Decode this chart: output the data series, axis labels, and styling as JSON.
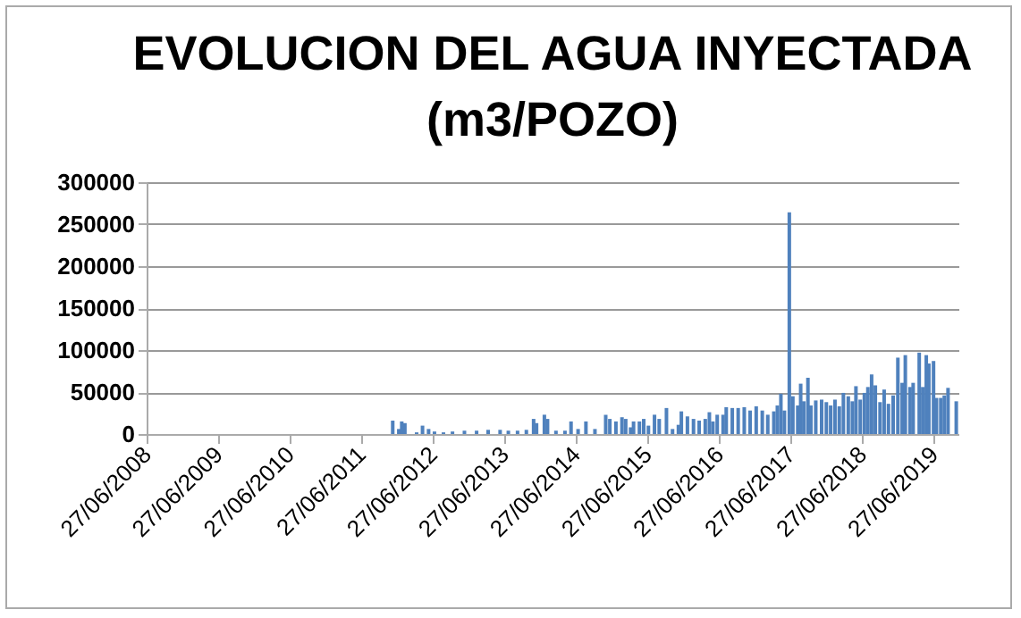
{
  "chart_data": {
    "type": "bar",
    "title": "EVOLUCION DEL AGUA INYECTADA\n(m3/POZO)",
    "x": [
      "2011-12-05",
      "2012-01-05",
      "2012-01-20",
      "2012-02-05",
      "2012-04-05",
      "2012-05-05",
      "2012-06-05",
      "2012-07-05",
      "2012-08-20",
      "2012-10-05",
      "2012-12-05",
      "2013-02-05",
      "2013-04-05",
      "2013-06-05",
      "2013-07-17",
      "2013-09-02",
      "2013-10-17",
      "2013-11-23",
      "2013-12-08",
      "2014-01-17",
      "2014-02-02",
      "2014-03-17",
      "2014-05-02",
      "2014-06-02",
      "2014-07-08",
      "2014-08-17",
      "2014-10-02",
      "2014-11-26",
      "2014-12-17",
      "2015-01-17",
      "2015-02-17",
      "2015-03-08",
      "2015-04-02",
      "2015-04-17",
      "2015-05-17",
      "2015-06-08",
      "2015-07-02",
      "2015-08-02",
      "2015-08-26",
      "2015-10-02",
      "2015-11-02",
      "2015-12-02",
      "2015-12-17",
      "2016-01-17",
      "2016-02-17",
      "2016-03-17",
      "2016-04-17",
      "2016-05-08",
      "2016-05-26",
      "2016-06-17",
      "2016-07-17",
      "2016-08-02",
      "2016-09-02",
      "2016-10-02",
      "2016-11-02",
      "2016-12-02",
      "2017-01-02",
      "2017-02-02",
      "2017-03-02",
      "2017-04-02",
      "2017-04-20",
      "2017-05-08",
      "2017-05-26",
      "2017-06-20",
      "2017-07-08",
      "2017-08-02",
      "2017-08-17",
      "2017-09-02",
      "2017-09-23",
      "2017-10-08",
      "2017-11-02",
      "2017-12-02",
      "2017-12-26",
      "2018-01-17",
      "2018-02-08",
      "2018-03-02",
      "2018-03-23",
      "2018-04-17",
      "2018-05-08",
      "2018-05-26",
      "2018-06-17",
      "2018-07-08",
      "2018-07-26",
      "2018-08-14",
      "2018-09-02",
      "2018-09-26",
      "2018-10-17",
      "2018-11-08",
      "2018-12-02",
      "2018-12-26",
      "2019-01-17",
      "2019-02-02",
      "2019-02-26",
      "2019-03-14",
      "2019-04-14",
      "2019-05-02",
      "2019-05-20",
      "2019-06-02",
      "2019-06-26",
      "2019-07-11",
      "2019-08-02",
      "2019-08-20",
      "2019-09-08",
      "2019-10-20"
    ],
    "series": [
      {
        "color": "#4f81bd",
        "values": [
          16000,
          6000,
          15000,
          13000,
          2000,
          10000,
          6000,
          3000,
          2000,
          3000,
          4000,
          4000,
          5000,
          5000,
          4000,
          4000,
          5000,
          18000,
          13000,
          23000,
          18000,
          4000,
          4000,
          15000,
          6000,
          15000,
          6000,
          23000,
          18000,
          15000,
          20000,
          18000,
          8000,
          15000,
          15000,
          18000,
          10000,
          23000,
          18000,
          31000,
          6000,
          11000,
          27000,
          21000,
          18000,
          16000,
          18000,
          26000,
          15000,
          23000,
          23000,
          32000,
          31000,
          31000,
          32000,
          28000,
          33000,
          28000,
          23000,
          27000,
          34000,
          48000,
          28000,
          264000,
          45000,
          34000,
          60000,
          39000,
          67000,
          34000,
          40000,
          41000,
          38000,
          34000,
          41000,
          33000,
          49000,
          45000,
          39000,
          57000,
          41000,
          49000,
          56000,
          71000,
          58000,
          38000,
          53000,
          36000,
          46000,
          91000,
          61000,
          94000,
          56000,
          61000,
          97000,
          56000,
          94000,
          84000,
          87000,
          43000,
          43000,
          46000,
          55000,
          39000
        ]
      }
    ],
    "xlim": [
      "2008-06-27",
      "2019-10-31"
    ],
    "xticks": [
      {
        "value": "2008-06-27",
        "label": "27/06/2008"
      },
      {
        "value": "2009-06-27",
        "label": "27/06/2009"
      },
      {
        "value": "2010-06-27",
        "label": "27/06/2010"
      },
      {
        "value": "2011-06-27",
        "label": "27/06/2011"
      },
      {
        "value": "2012-06-27",
        "label": "27/06/2012"
      },
      {
        "value": "2013-06-27",
        "label": "27/06/2013"
      },
      {
        "value": "2014-06-27",
        "label": "27/06/2014"
      },
      {
        "value": "2015-06-27",
        "label": "27/06/2015"
      },
      {
        "value": "2016-06-27",
        "label": "27/06/2016"
      },
      {
        "value": "2017-06-27",
        "label": "27/06/2017"
      },
      {
        "value": "2018-06-27",
        "label": "27/06/2018"
      },
      {
        "value": "2019-06-27",
        "label": "27/06/2019"
      }
    ],
    "ylim": [
      0,
      300000
    ],
    "yticks": [
      0,
      50000,
      100000,
      150000,
      200000,
      250000,
      300000
    ],
    "grid": "y",
    "legend": false
  }
}
